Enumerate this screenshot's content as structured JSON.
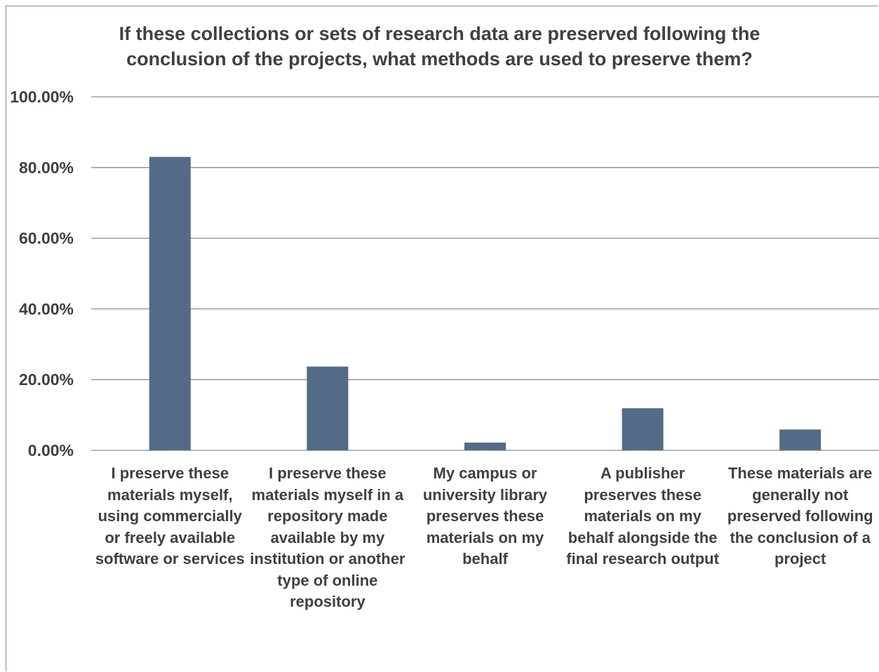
{
  "chart_data": {
    "type": "bar",
    "title_lines": [
      "If these collections or sets of research data are preserved following the",
      "conclusion of the projects, what methods are used to preserve them?"
    ],
    "categories": [
      [
        "I preserve these",
        "materials myself,",
        "using commercially",
        "or freely available",
        "software or services"
      ],
      [
        "I preserve these",
        "materials myself in a",
        "repository made",
        "available by my",
        "institution or another",
        "type of online",
        "repository"
      ],
      [
        "My campus or",
        "university library",
        "preserves these",
        "materials on my",
        "behalf"
      ],
      [
        "A publisher",
        "preserves these",
        "materials on my",
        "behalf alongside the",
        "final research output"
      ],
      [
        "These materials are",
        "generally not",
        "preserved following",
        "the conclusion of a",
        "project"
      ]
    ],
    "values": [
      83.0,
      23.7,
      2.2,
      11.9,
      5.9
    ],
    "ylim": [
      0,
      100
    ],
    "y_ticks": [
      "0.00%",
      "20.00%",
      "40.00%",
      "60.00%",
      "80.00%",
      "100.00%"
    ],
    "grid": true,
    "colors": {
      "bar": "#536b87",
      "grid": "#8c8c8c",
      "text": "#404040"
    }
  }
}
